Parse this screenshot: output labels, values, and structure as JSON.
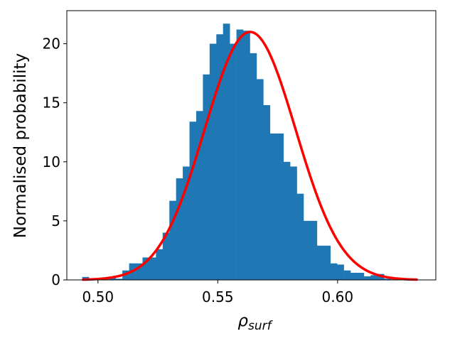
{
  "chart_data": {
    "type": "bar",
    "xlabel": "ρ",
    "xlabel_subscript": "surf",
    "ylabel": "Normalised probability",
    "xlim": [
      0.487,
      0.641
    ],
    "ylim": [
      0,
      22.8
    ],
    "grid": false,
    "legend": "none",
    "xticks": [
      {
        "value": 0.5,
        "label": "0.50"
      },
      {
        "value": 0.55,
        "label": "0.55"
      },
      {
        "value": 0.6,
        "label": "0.60"
      }
    ],
    "yticks": [
      {
        "value": 0,
        "label": "0"
      },
      {
        "value": 5,
        "label": "5"
      },
      {
        "value": 10,
        "label": "10"
      },
      {
        "value": 15,
        "label": "15"
      },
      {
        "value": 20,
        "label": "20"
      }
    ],
    "bin_width": 0.0028,
    "bin_left_edges": [
      0.4934,
      0.4962,
      0.499,
      0.5018,
      0.5046,
      0.5074,
      0.5102,
      0.513,
      0.5158,
      0.5186,
      0.5214,
      0.5242,
      0.527,
      0.5298,
      0.5326,
      0.5354,
      0.5382,
      0.541,
      0.5438,
      0.5466,
      0.5494,
      0.5522,
      0.555,
      0.5578,
      0.5606,
      0.5634,
      0.5662,
      0.569,
      0.5718,
      0.5746,
      0.5774,
      0.5802,
      0.583,
      0.5858,
      0.5886,
      0.5914,
      0.5942,
      0.597,
      0.5998,
      0.6026,
      0.6054,
      0.6082,
      0.611,
      0.6138,
      0.6166,
      0.6194,
      0.6222,
      0.625,
      0.6278,
      0.6306
    ],
    "series": [
      {
        "type": "histogram",
        "color": "#1f77b4",
        "values": [
          0.25,
          0.1,
          0.05,
          0.05,
          0.15,
          0.1,
          0.8,
          1.4,
          1.4,
          1.9,
          1.9,
          2.6,
          4.0,
          6.7,
          8.6,
          9.6,
          13.4,
          14.3,
          17.4,
          20.0,
          20.8,
          21.7,
          20.0,
          21.2,
          21.1,
          19.2,
          17.0,
          14.8,
          12.4,
          12.4,
          10.0,
          9.6,
          7.3,
          5.0,
          5.0,
          2.9,
          2.9,
          1.4,
          1.3,
          0.8,
          0.6,
          0.6,
          0.3,
          0.4,
          0.5,
          0.1,
          0.05,
          0.05,
          0.05,
          0.05
        ]
      },
      {
        "type": "line",
        "color": "#ff0000",
        "distribution": "normal",
        "mean": 0.5635,
        "std": 0.019,
        "x_range": [
          0.4934,
          0.6334
        ]
      }
    ]
  }
}
